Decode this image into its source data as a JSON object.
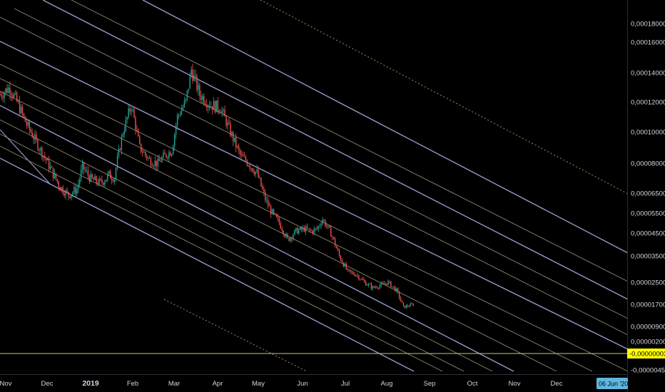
{
  "colors": {
    "background": "#000000",
    "up": "#26a69a",
    "down": "#ef5350",
    "channel_major": "#9598c8",
    "channel_minor": "#8a8a70",
    "dotted": "#b08a5a",
    "marker_line": "#c9c96a",
    "price_badge_bg": "#ffff00",
    "date_badge_bg": "#5fb7e0",
    "axis_text": "#d1d4dc"
  },
  "chart_data": {
    "type": "candlestick",
    "y_scale": "log",
    "y_tick_labels": [
      "0,00018000",
      "0,00016000",
      "0,00014000",
      "0,00012000",
      "0,00010000",
      "0,00008000",
      "0,00006500",
      "0,00005500",
      "0,00004500",
      "0,00003500",
      "0,00002500",
      "0,00001700",
      "0,00000900",
      "0,00000200",
      "-0,00000450"
    ],
    "x_tick_labels": [
      {
        "text": "Nov",
        "bold": false
      },
      {
        "text": "Dec",
        "bold": false
      },
      {
        "text": "2019",
        "bold": true
      },
      {
        "text": "Feb",
        "bold": false
      },
      {
        "text": "Mar",
        "bold": false
      },
      {
        "text": "Apr",
        "bold": false
      },
      {
        "text": "May",
        "bold": false
      },
      {
        "text": "Jun",
        "bold": false
      },
      {
        "text": "Jul",
        "bold": false
      },
      {
        "text": "Aug",
        "bold": false
      },
      {
        "text": "Sep",
        "bold": false
      },
      {
        "text": "Oct",
        "bold": false
      },
      {
        "text": "Nov",
        "bold": false
      },
      {
        "text": "Dec",
        "bold": false
      }
    ],
    "price_marker_label": "-0,00000003",
    "cursor_date_label": "06 Jun '20",
    "price_path": [
      [
        "2018-10-28",
        0.000125
      ],
      [
        "2018-11-04",
        0.00013
      ],
      [
        "2018-11-10",
        0.000118
      ],
      [
        "2018-11-16",
        0.000105
      ],
      [
        "2018-11-22",
        9.5e-05
      ],
      [
        "2018-11-28",
        8.5e-05
      ],
      [
        "2018-12-04",
        7.6e-05
      ],
      [
        "2018-12-10",
        6.8e-05
      ],
      [
        "2018-12-16",
        6.4e-05
      ],
      [
        "2018-12-22",
        6.7e-05
      ],
      [
        "2018-12-26",
        7.8e-05
      ],
      [
        "2019-01-01",
        7.2e-05
      ],
      [
        "2019-01-08",
        7e-05
      ],
      [
        "2019-01-14",
        7.4e-05
      ],
      [
        "2019-01-18",
        7.3e-05
      ],
      [
        "2019-01-24",
        0.0001
      ],
      [
        "2019-01-30",
        0.000118
      ],
      [
        "2019-02-05",
        9e-05
      ],
      [
        "2019-02-12",
        8.2e-05
      ],
      [
        "2019-02-18",
        8e-05
      ],
      [
        "2019-02-22",
        8.4e-05
      ],
      [
        "2019-02-28",
        8.8e-05
      ],
      [
        "2019-03-04",
        0.00011
      ],
      [
        "2019-03-10",
        0.00012
      ],
      [
        "2019-03-14",
        0.000142
      ],
      [
        "2019-03-20",
        0.000125
      ],
      [
        "2019-03-28",
        0.000118
      ],
      [
        "2019-04-04",
        0.000116
      ],
      [
        "2019-04-10",
        0.000102
      ],
      [
        "2019-04-18",
        8.5e-05
      ],
      [
        "2019-04-24",
        8e-05
      ],
      [
        "2019-04-30",
        7.5e-05
      ],
      [
        "2019-05-06",
        6.2e-05
      ],
      [
        "2019-05-10",
        5.6e-05
      ],
      [
        "2019-05-16",
        5e-05
      ],
      [
        "2019-05-22",
        4.2e-05
      ],
      [
        "2019-05-28",
        4.6e-05
      ],
      [
        "2019-06-03",
        4.7e-05
      ],
      [
        "2019-06-08",
        4.6e-05
      ],
      [
        "2019-06-12",
        4.7e-05
      ],
      [
        "2019-06-16",
        5.2e-05
      ],
      [
        "2019-06-22",
        4.5e-05
      ],
      [
        "2019-06-28",
        3.5e-05
      ],
      [
        "2019-07-04",
        2.9e-05
      ],
      [
        "2019-07-10",
        2.8e-05
      ],
      [
        "2019-07-16",
        2.5e-05
      ],
      [
        "2019-07-22",
        2.3e-05
      ],
      [
        "2019-07-28",
        2.4e-05
      ],
      [
        "2019-08-02",
        2.5e-05
      ],
      [
        "2019-08-08",
        2.2e-05
      ],
      [
        "2019-08-13",
        1.6e-05
      ],
      [
        "2019-08-20",
        1.7e-05
      ]
    ]
  }
}
